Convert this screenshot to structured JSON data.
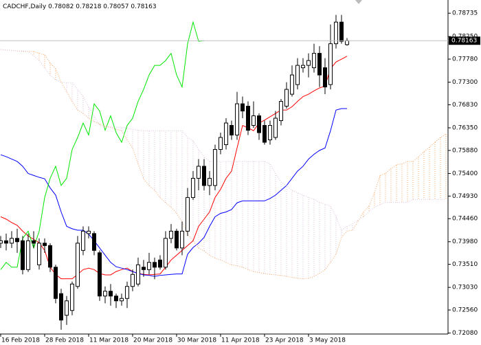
{
  "chart_data": {
    "type": "candlestick",
    "title": "CADCHF,Daily",
    "categories": [
      "16 Feb 2018",
      null,
      null,
      null,
      null,
      null,
      null,
      null,
      "28 Feb 2018",
      null,
      null,
      null,
      null,
      null,
      null,
      null,
      "11 Mar 2018",
      null,
      null,
      null,
      null,
      null,
      null,
      null,
      "20 Mar 2018",
      null,
      null,
      null,
      null,
      null,
      null,
      null,
      "30 Mar 2018",
      null,
      null,
      null,
      null,
      null,
      null,
      null,
      "11 Apr 2018",
      null,
      null,
      null,
      null,
      null,
      null,
      null,
      "23 Apr 2018",
      null,
      null,
      null,
      null,
      null,
      null,
      null,
      "3 May 2018",
      null,
      null,
      null,
      null,
      null,
      null,
      null,
      null,
      null,
      null,
      null,
      null,
      null,
      null,
      null,
      null,
      null,
      null,
      null,
      null,
      null,
      null,
      null,
      null,
      null
    ],
    "open": [
      0.7395,
      0.74,
      0.7395,
      0.7405,
      0.74,
      0.734,
      0.74,
      0.735,
      0.7395,
      0.739,
      0.7345,
      0.729,
      0.7245,
      0.7255,
      0.7305,
      0.738,
      0.7415,
      0.7415,
      0.7375,
      0.7285,
      0.7295,
      0.7285,
      0.7275,
      0.728,
      0.7305,
      0.731,
      0.7345,
      0.734,
      0.7355,
      0.736,
      0.7345,
      0.7405,
      0.742,
      0.7385,
      0.742,
      0.749,
      0.753,
      0.7555,
      0.7515,
      0.7515,
      0.759,
      0.76,
      0.764,
      0.762,
      0.7685,
      0.768,
      0.764,
      0.766,
      0.764,
      0.761,
      0.7615,
      0.765,
      0.768,
      0.7705,
      0.7725,
      0.776,
      0.7765,
      0.776,
      0.779,
      0.776,
      0.7725,
      0.781,
      0.7855,
      0.78082,
      null,
      null,
      null,
      null,
      null,
      null,
      null,
      null,
      null,
      null,
      null,
      null,
      null,
      null,
      null,
      null,
      null,
      null
    ],
    "high": [
      0.741,
      0.7415,
      0.742,
      0.7425,
      0.741,
      0.7415,
      0.742,
      0.7405,
      0.7405,
      0.7395,
      0.735,
      0.73,
      0.7285,
      0.7315,
      0.741,
      0.743,
      0.743,
      0.742,
      0.738,
      0.7305,
      0.731,
      0.729,
      0.729,
      0.7315,
      0.734,
      0.7365,
      0.736,
      0.7375,
      0.7365,
      0.737,
      0.742,
      0.7435,
      0.7425,
      0.744,
      0.751,
      0.7545,
      0.757,
      0.757,
      0.7545,
      0.76,
      0.7625,
      0.7655,
      0.765,
      0.771,
      0.77,
      0.769,
      0.769,
      0.7665,
      0.765,
      0.765,
      0.767,
      0.7695,
      0.773,
      0.7765,
      0.778,
      0.778,
      0.779,
      0.781,
      0.7805,
      0.778,
      0.785,
      0.787,
      0.787,
      0.78218,
      null,
      null,
      null,
      null,
      null,
      null,
      null,
      null,
      null,
      null,
      null,
      null,
      null,
      null,
      null,
      null,
      null,
      null
    ],
    "low": [
      0.7385,
      0.738,
      0.7385,
      0.7375,
      0.733,
      0.7335,
      0.7385,
      0.734,
      0.7375,
      0.7335,
      0.727,
      0.7215,
      0.7225,
      0.7245,
      0.73,
      0.737,
      0.7405,
      0.737,
      0.7275,
      0.727,
      0.7265,
      0.726,
      0.7265,
      0.726,
      0.7295,
      0.7305,
      0.7325,
      0.733,
      0.732,
      0.734,
      0.734,
      0.7395,
      0.738,
      0.737,
      0.741,
      0.7485,
      0.7505,
      0.7505,
      0.7495,
      0.7505,
      0.758,
      0.759,
      0.761,
      0.761,
      0.7655,
      0.762,
      0.7635,
      0.761,
      0.76,
      0.76,
      0.761,
      0.764,
      0.7675,
      0.77,
      0.7715,
      0.775,
      0.774,
      0.775,
      0.772,
      0.7705,
      0.7715,
      0.78,
      0.781,
      0.78057,
      null,
      null,
      null,
      null,
      null,
      null,
      null,
      null,
      null,
      null,
      null,
      null,
      null,
      null,
      null,
      null,
      null,
      null
    ],
    "close": [
      0.74,
      0.7395,
      0.7405,
      0.7398,
      0.734,
      0.74,
      0.7395,
      0.7395,
      0.739,
      0.7345,
      0.728,
      0.7235,
      0.7275,
      0.731,
      0.7395,
      0.742,
      0.742,
      0.738,
      0.7285,
      0.7295,
      0.7285,
      0.7275,
      0.728,
      0.7305,
      0.733,
      0.735,
      0.734,
      0.7355,
      0.7345,
      0.7345,
      0.7405,
      0.742,
      0.7385,
      0.742,
      0.749,
      0.753,
      0.7555,
      0.7515,
      0.753,
      0.759,
      0.7615,
      0.7645,
      0.762,
      0.7685,
      0.767,
      0.763,
      0.766,
      0.7625,
      0.7605,
      0.764,
      0.7655,
      0.769,
      0.7715,
      0.7745,
      0.7765,
      0.7765,
      0.7775,
      0.779,
      0.7745,
      0.772,
      0.781,
      0.7855,
      0.7815,
      0.78163,
      null,
      null,
      null,
      null,
      null,
      null,
      null,
      null,
      null,
      null,
      null,
      null,
      null,
      null,
      null,
      null,
      null,
      null
    ],
    "up_color": "#ffffff",
    "down_color": "#000000",
    "series": [
      {
        "color": "#ff0000",
        "values": [
          0.745,
          0.7445,
          0.7438,
          0.7432,
          0.742,
          0.741,
          0.7403,
          0.7396,
          0.738,
          0.7345,
          0.733,
          0.7321,
          0.7321,
          0.7321,
          0.733,
          0.734,
          0.7343,
          0.734,
          0.7332,
          0.7329,
          0.7329,
          0.7336,
          0.734,
          0.7343,
          0.7336,
          0.7332,
          0.733,
          0.7329,
          0.733,
          0.7331,
          0.7345,
          0.736,
          0.737,
          0.738,
          0.739,
          0.74,
          0.743,
          0.7445,
          0.746,
          0.749,
          0.7507,
          0.753,
          0.7545,
          0.7593,
          0.764,
          0.7635,
          0.7629,
          0.7645,
          0.7651,
          0.7658,
          0.7665,
          0.7672,
          0.7672,
          0.7679,
          0.769,
          0.77,
          0.7705,
          0.7712,
          0.7718,
          0.7722,
          0.7758,
          0.7772,
          0.7778,
          0.7784,
          null,
          null,
          null,
          null,
          null,
          null,
          null,
          null,
          null,
          null,
          null,
          null,
          null,
          null,
          null,
          null,
          null,
          null
        ]
      },
      {
        "color": "#0000ff",
        "values": [
          0.7579,
          0.7575,
          0.757,
          0.7565,
          0.7555,
          0.754,
          0.7536,
          0.7532,
          0.7529,
          0.751,
          0.7495,
          0.746,
          0.743,
          0.7425,
          0.7422,
          0.7422,
          0.7414,
          0.74,
          0.7385,
          0.737,
          0.7355,
          0.7346,
          0.7343,
          0.734,
          0.7336,
          0.7332,
          0.7329,
          0.7328,
          0.7326,
          0.7328,
          0.7329,
          0.733,
          0.7331,
          0.7331,
          0.7372,
          0.7386,
          0.7395,
          0.7407,
          0.743,
          0.745,
          0.7457,
          0.746,
          0.7465,
          0.7479,
          0.7483,
          0.7483,
          0.7483,
          0.7483,
          0.7483,
          0.7488,
          0.7495,
          0.7505,
          0.7515,
          0.753,
          0.7545,
          0.7555,
          0.757,
          0.758,
          0.7588,
          0.7593,
          0.7629,
          0.7672,
          0.7675,
          0.7675,
          null,
          null,
          null,
          null,
          null,
          null,
          null,
          null,
          null,
          null,
          null,
          null,
          null,
          null,
          null,
          null,
          null,
          null
        ]
      },
      {
        "color": "#00e600",
        "values": [
          0.734,
          0.7355,
          0.7345,
          0.7345,
          0.7405,
          0.742,
          0.7385,
          0.742,
          0.749,
          0.753,
          0.7555,
          0.7515,
          0.753,
          0.759,
          0.7615,
          0.7645,
          0.762,
          0.7685,
          0.767,
          0.763,
          0.766,
          0.7625,
          0.7605,
          0.764,
          0.7655,
          0.769,
          0.7715,
          0.7745,
          0.7765,
          0.7765,
          0.7775,
          0.779,
          0.7745,
          0.772,
          0.781,
          0.7855,
          0.7815,
          0.78163,
          null,
          null,
          null,
          null,
          null,
          null,
          null,
          null,
          null,
          null,
          null,
          null,
          null,
          null,
          null,
          null,
          null,
          null,
          null,
          null,
          null,
          null,
          null,
          null,
          null,
          null,
          null,
          null,
          null,
          null,
          null,
          null,
          null,
          null,
          null,
          null,
          null,
          null,
          null,
          null,
          null,
          null,
          null,
          null
        ]
      },
      {
        "color": "#f4a460",
        "values": [
          0.7798,
          0.7797,
          0.7796,
          0.7795,
          0.7794,
          0.7794,
          0.7794,
          0.779,
          0.7787,
          0.777,
          0.7758,
          0.773,
          0.771,
          0.769,
          0.7672,
          0.7665,
          0.7655,
          0.7648,
          0.7643,
          0.7638,
          0.7636,
          0.7632,
          0.7629,
          0.761,
          0.7593,
          0.756,
          0.7529,
          0.7515,
          0.7505,
          0.749,
          0.7479,
          0.747,
          0.7457,
          0.744,
          0.7414,
          0.74,
          0.7385,
          0.7379,
          0.737,
          0.7364,
          0.736,
          0.7355,
          0.735,
          0.7348,
          0.7345,
          0.734,
          0.7336,
          0.7334,
          0.7332,
          0.733,
          0.7329,
          0.7328,
          0.7326,
          0.7324,
          0.7322,
          0.7321,
          0.7322,
          0.7326,
          0.7332,
          0.734,
          0.7355,
          0.7372,
          0.7407,
          0.742,
          0.7422,
          0.744,
          0.746,
          0.7472,
          0.75,
          0.7536,
          0.754,
          0.755,
          0.7558,
          0.756,
          0.7565,
          0.7565,
          0.7575,
          0.7585,
          0.7595,
          0.7605,
          0.7615,
          0.7622
        ]
      },
      {
        "color": "#d8bfd8",
        "values": [
          0.7798,
          0.7797,
          0.7796,
          0.7795,
          0.7795,
          0.7794,
          0.7785,
          0.7775,
          0.776,
          0.7744,
          0.7735,
          0.773,
          0.7729,
          0.7729,
          0.7715,
          0.77,
          0.7679,
          0.766,
          0.764,
          0.7636,
          0.7636,
          0.7636,
          0.7636,
          0.7634,
          0.7632,
          0.763,
          0.7629,
          0.7629,
          0.7629,
          0.7629,
          0.7629,
          0.7629,
          0.7629,
          0.7629,
          0.7615,
          0.7608,
          0.759,
          0.7575,
          0.7565,
          0.7565,
          0.7565,
          0.7565,
          0.7565,
          0.7565,
          0.7565,
          0.7565,
          0.7565,
          0.7565,
          0.7565,
          0.756,
          0.754,
          0.7522,
          0.7515,
          0.7505,
          0.75,
          0.7495,
          0.749,
          0.7486,
          0.748,
          0.7476,
          0.7472,
          0.745,
          0.7422,
          0.743,
          0.7435,
          0.7443,
          0.745,
          0.746,
          0.747,
          0.7475,
          0.748,
          0.748,
          0.748,
          0.748,
          0.748,
          0.7486,
          0.7486,
          0.7486,
          0.7486,
          0.7486,
          0.7486,
          0.7486
        ]
      }
    ],
    "ylim": [
      0.7206,
      0.7901
    ],
    "yticks": [
      {
        "value": 0.78735,
        "label": "0.78735"
      },
      {
        "value": 0.7825,
        "label": "0.78250"
      },
      {
        "value": 0.7778,
        "label": "0.77780"
      },
      {
        "value": 0.773,
        "label": "0.77300"
      },
      {
        "value": 0.7683,
        "label": "0.76830"
      },
      {
        "value": 0.7635,
        "label": "0.76350"
      },
      {
        "value": 0.7588,
        "label": "0.75880"
      },
      {
        "value": 0.754,
        "label": "0.75400"
      },
      {
        "value": 0.7493,
        "label": "0.74930"
      },
      {
        "value": 0.7446,
        "label": "0.74460"
      },
      {
        "value": 0.7398,
        "label": "0.73980"
      },
      {
        "value": 0.7351,
        "label": "0.73510"
      },
      {
        "value": 0.7303,
        "label": "0.73030"
      },
      {
        "value": 0.7256,
        "label": "0.72560"
      },
      {
        "value": 0.7208,
        "label": "0.72080"
      }
    ],
    "grid": false
  }
}
